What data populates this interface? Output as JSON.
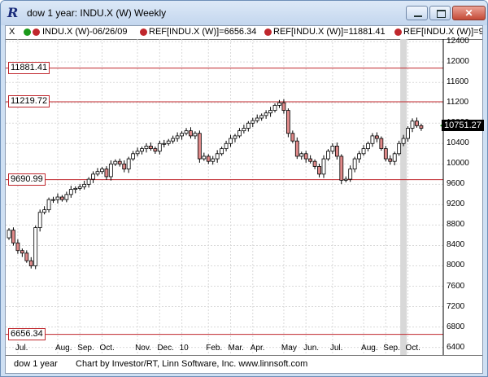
{
  "window": {
    "title": "dow 1 year: INDU.X (W) Weekly",
    "icon": "R",
    "minimize_glyph": "—",
    "close_glyph": "✕"
  },
  "legend": {
    "close_glyph": "X",
    "items": [
      {
        "text": "INDU.X (W)-06/26/09",
        "dots": [
          "#1b9a1b",
          "#c0272d"
        ]
      },
      {
        "text": "REF[INDU.X (W)]=6656.34",
        "dots": [
          "#c0272d"
        ]
      },
      {
        "text": "REF[INDU.X (W)]=11881.41",
        "dots": [
          "#c0272d"
        ]
      },
      {
        "text": "REF[INDU.X (W)]=9",
        "dots": [
          "#c0272d"
        ]
      }
    ]
  },
  "chart_data": {
    "type": "candlestick",
    "yticks": [
      6400,
      6800,
      7200,
      7600,
      8000,
      8400,
      8800,
      9200,
      9600,
      10000,
      10400,
      10800,
      11200,
      11600,
      12000,
      12400
    ],
    "ytick_labels": [
      "6400",
      "6800",
      "7200",
      "7600",
      "8000",
      "8400",
      "8800",
      "9200",
      "9600",
      "10000",
      "10400",
      "10800",
      "11200",
      "11600",
      "12000",
      "12400"
    ],
    "ylim": [
      6250,
      12450
    ],
    "xtick_labels": [
      "Jul.",
      "Aug.",
      "Sep.",
      "Oct.",
      "Nov.",
      "Dec.",
      "10",
      "Feb.",
      "Mar.",
      "Apr.",
      "May",
      "Jun.",
      "Jul.",
      "Aug.",
      "Sep.",
      "Oct."
    ],
    "xtick_index": [
      2,
      11,
      16,
      21,
      29,
      34,
      39,
      45,
      50,
      55,
      62,
      67,
      73,
      80,
      85,
      90
    ],
    "reference_lines": [
      {
        "label": "11881.41",
        "value": 11881.41
      },
      {
        "label": "11219.72",
        "value": 11219.72
      },
      {
        "label": "9690.99",
        "value": 9690.99
      },
      {
        "label": "6656.34",
        "value": 6656.34
      }
    ],
    "last_price": "10751.27",
    "last_value": 10751.27,
    "highlight_index": 89,
    "closes": [
      8700,
      8450,
      8300,
      8250,
      8100,
      8000,
      8750,
      9050,
      9100,
      9300,
      9300,
      9350,
      9300,
      9400,
      9500,
      9520,
      9550,
      9600,
      9700,
      9800,
      9850,
      9900,
      9750,
      10000,
      10050,
      10000,
      9900,
      10100,
      10200,
      10250,
      10300,
      10350,
      10300,
      10250,
      10400,
      10400,
      10450,
      10500,
      10550,
      10600,
      10650,
      10550,
      10600,
      10100,
      10150,
      10050,
      10100,
      10200,
      10300,
      10400,
      10500,
      10550,
      10650,
      10700,
      10800,
      10850,
      10900,
      10950,
      11000,
      11050,
      11150,
      11200,
      11050,
      10600,
      10450,
      10150,
      10200,
      10100,
      10050,
      9950,
      9800,
      10100,
      10250,
      10350,
      10150,
      9680,
      9700,
      9900,
      10100,
      10200,
      10300,
      10400,
      10550,
      10500,
      10300,
      10100,
      10050,
      10200,
      10400,
      10500,
      10700,
      10840,
      10751,
      10700
    ]
  },
  "status": {
    "left": "dow 1 year",
    "right": "Chart by Investor/RT, Linn Software, Inc. www.linnsoft.com"
  },
  "colors": {
    "up": "#ffffff",
    "down": "#e08a8a",
    "ref_line": "#c0272d",
    "grid": "#d9d9d9",
    "highlight": "#d8d8d8"
  }
}
